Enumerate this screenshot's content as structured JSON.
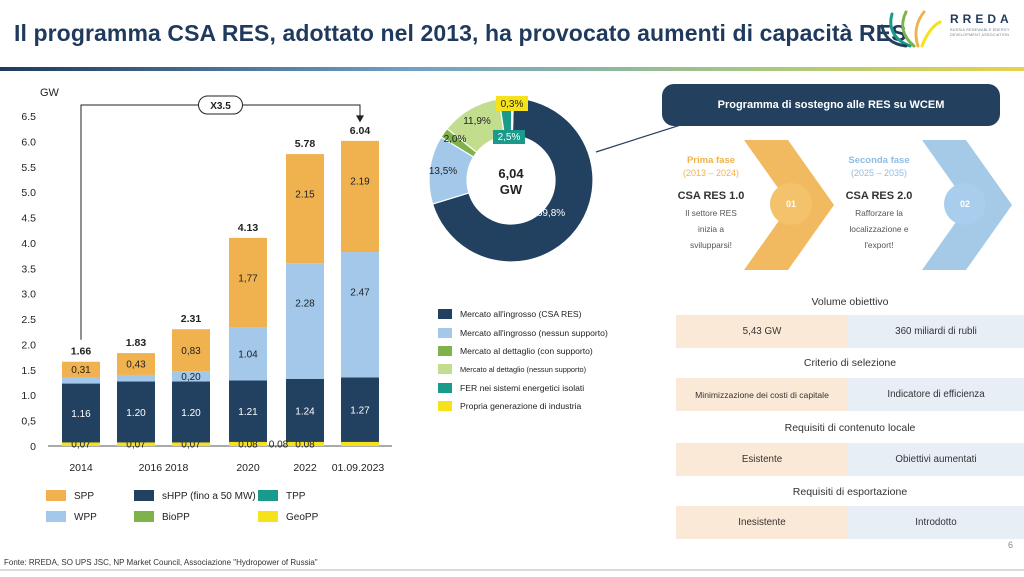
{
  "title": "Il programma CSA RES, adottato nel 2013, ha provocato aumenti di capacità RES",
  "logo": {
    "name": "RREDA",
    "subtitle": "RUSSIA RENEWABLE ENERGY DEVELOPMENT ASSOCIATION"
  },
  "colors": {
    "spp": "#efb24f",
    "wpp": "#a3c8ea",
    "shpp": "#22405f",
    "biopp": "#7fb24a",
    "tpp": "#1a9a8a",
    "geopp": "#f6e21a",
    "navy": "#23405f",
    "phase1": "#efb24f",
    "phase2": "#9bc4e6",
    "tint_orange": "#fbe9d7",
    "tint_blue": "#e8eef6"
  },
  "source": "Fonte: RREDA, SO UPS JSC, NP Market Council, Associazione \"Hydropower of Russia\"",
  "page_number": "6",
  "chart_data": [
    {
      "type": "bar",
      "stacked": true,
      "ylabel": "GW",
      "ylim": [
        0,
        6.5
      ],
      "yticks": [
        "0",
        "0,5",
        "1.0",
        "1.5",
        "2.0",
        "2.5",
        "3.0",
        "3.5",
        "4.0",
        "4.5",
        "5.0",
        "5.5",
        "6.0",
        "6.5"
      ],
      "categories": [
        "2014",
        "2016",
        "2018",
        "2020",
        "2022",
        "01.09.2023"
      ],
      "category_labels": [
        "2014",
        "2016 2018",
        "2020",
        "2022",
        "01.09.2023"
      ],
      "totals": [
        "1.66",
        "1.83",
        "2.31",
        "4.13",
        "5.78",
        "6.04"
      ],
      "multiplier_label": "X3.5",
      "series": [
        {
          "name": "GeoPP",
          "color": "#f6e21a",
          "values": [
            0.07,
            0.07,
            0.07,
            0.08,
            0.08,
            0.08
          ],
          "labels": [
            "0,07",
            "0,07",
            "0,07",
            "0.08",
            "0.08",
            ""
          ]
        },
        {
          "name": "sHPP (fino a 50 MW)",
          "color": "#22405f",
          "values": [
            1.16,
            1.2,
            1.2,
            1.21,
            1.24,
            1.27
          ],
          "labels": [
            "1.16",
            "1.20",
            "1.20",
            "1.21",
            "1.24",
            "1.27"
          ]
        },
        {
          "name": "WPP",
          "color": "#a3c8ea",
          "values": [
            0.12,
            0.13,
            0.2,
            1.04,
            2.28,
            2.47
          ],
          "labels": [
            "",
            "",
            "0,20",
            "1.04",
            "2.28",
            "2.47"
          ]
        },
        {
          "name": "SPP",
          "color": "#efb24f",
          "values": [
            0.31,
            0.43,
            0.83,
            1.77,
            2.15,
            2.19
          ],
          "labels": [
            "0,31",
            "0,43",
            "0,83",
            "1,77",
            "2.15",
            "2.19"
          ]
        }
      ],
      "extra_label": "0.08",
      "legend": [
        {
          "name": "SPP",
          "color": "#efb24f"
        },
        {
          "name": "sHPP (fino a 50 MW)",
          "color": "#22405f"
        },
        {
          "name": "TPP",
          "color": "#1a9a8a"
        },
        {
          "name": "WPP",
          "color": "#a3c8ea"
        },
        {
          "name": "BioPP",
          "color": "#7fb24a"
        },
        {
          "name": "GeoPP",
          "color": "#f6e21a"
        }
      ]
    },
    {
      "type": "pie",
      "donut": true,
      "center_value": "6,04",
      "center_unit": "GW",
      "slices": [
        {
          "name": "Mercato all'ingrosso (CSA RES)",
          "value": 69.8,
          "label": "69,8%",
          "color": "#22405f"
        },
        {
          "name": "Mercato all'ingrosso (nessun supporto)",
          "value": 13.5,
          "label": "13,5%",
          "color": "#a3c8ea"
        },
        {
          "name": "Mercato al dettaglio (con supporto)",
          "value": 2.0,
          "label": "2,0%",
          "color": "#7fb24a"
        },
        {
          "name": "Mercato al dettaglio (nessun supporto)",
          "value": 11.9,
          "label": "11,9%",
          "color": "#c2dd8e"
        },
        {
          "name": "FER nei sistemi energetici isolati",
          "value": 2.5,
          "label": "2,5%",
          "color": "#1a9a8a"
        },
        {
          "name": "Propria generazione di industria",
          "value": 0.3,
          "label": "0,3%",
          "color": "#f6e21a"
        }
      ]
    }
  ],
  "program": {
    "header": "Programma di sostegno alle RES su WCEM",
    "phase1": {
      "title": "Prima fase",
      "years": "(2013 – 2024)",
      "name": "CSA RES 1.0",
      "desc": [
        "Il settore RES",
        "inizia a",
        "svilupparsi!"
      ],
      "badge": "01"
    },
    "phase2": {
      "title": "Seconda fase",
      "years": "(2025 – 2035)",
      "name": "CSA RES 2.0",
      "desc": [
        "Rafforzare la",
        "localizzazione e",
        "l'export!"
      ],
      "badge": "02"
    }
  },
  "table": [
    {
      "category": "Volume obiettivo",
      "phase1": "5,43 GW",
      "phase2": "360 miliardi di rubli"
    },
    {
      "category": "Criterio di selezione",
      "phase1": "Minimizzazione dei costi di capitale",
      "phase2": "Indicatore di efficienza"
    },
    {
      "category": "Requisiti di contenuto locale",
      "phase1": "Esistente",
      "phase2": "Obiettivi aumentati"
    },
    {
      "category": "Requisiti di esportazione",
      "phase1": "Inesistente",
      "phase2": "Introdotto"
    }
  ]
}
